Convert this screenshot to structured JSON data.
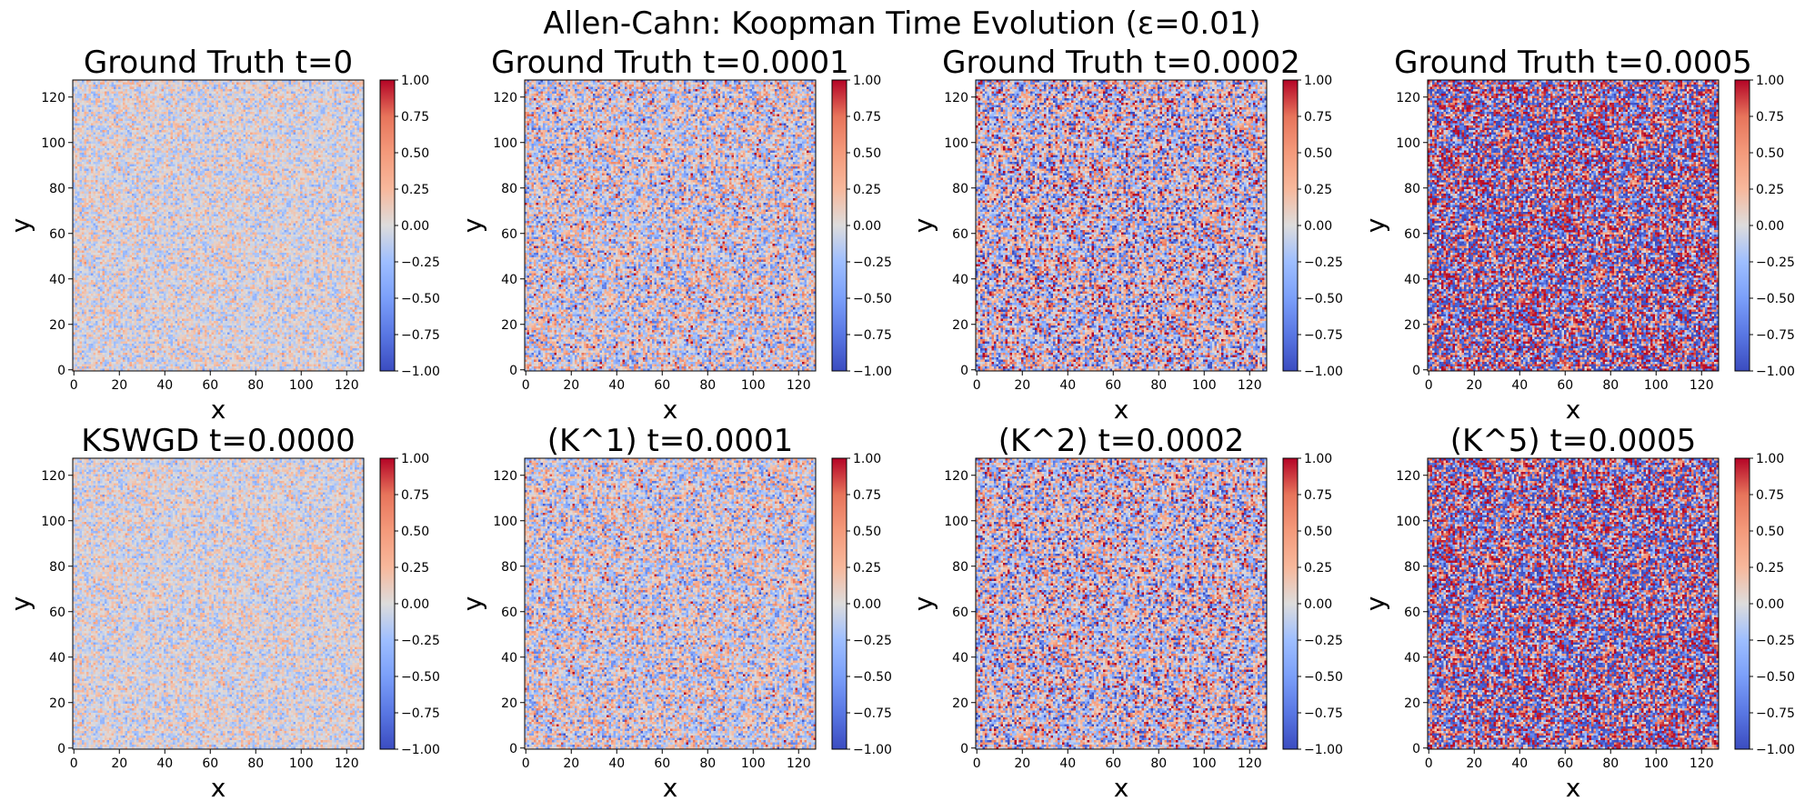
{
  "figure": {
    "title": "Allen-Cahn: Koopman Time Evolution (ε=0.01)"
  },
  "chart_data": {
    "type": "heatmap",
    "grid_size": 128,
    "colormap": "coolwarm",
    "color_range": [
      -1.0,
      1.0
    ],
    "colorbar_ticks": [
      "1.00",
      "0.75",
      "0.50",
      "0.25",
      "0.00",
      "−0.25",
      "−0.50",
      "−0.75",
      "−1.00"
    ],
    "x_ticks": [
      "0",
      "20",
      "40",
      "60",
      "80",
      "100",
      "120"
    ],
    "y_ticks": [
      "0",
      "20",
      "40",
      "60",
      "80",
      "100",
      "120"
    ],
    "xlabel": "x",
    "ylabel": "y",
    "xlim": [
      0,
      127
    ],
    "ylim": [
      0,
      127
    ],
    "panels": [
      {
        "title": "Ground Truth t=0",
        "amplitude": 0.28
      },
      {
        "title": "Ground Truth t=0.0001",
        "amplitude": 0.6
      },
      {
        "title": "Ground Truth t=0.0002",
        "amplitude": 0.85
      },
      {
        "title": "Ground Truth t=0.0005",
        "amplitude": 1.0
      },
      {
        "title": "KSWGD t=0.0000",
        "amplitude": 0.28
      },
      {
        "title": "(K^1) t=0.0001",
        "amplitude": 0.55
      },
      {
        "title": "(K^2) t=0.0002",
        "amplitude": 0.8
      },
      {
        "title": "(K^5) t=0.0005",
        "amplitude": 0.95
      }
    ]
  }
}
